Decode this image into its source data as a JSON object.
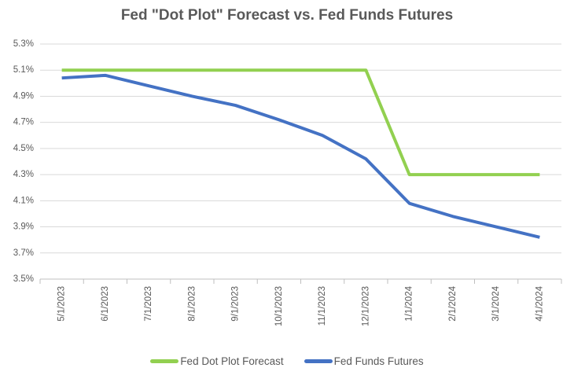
{
  "chart_data": {
    "type": "line",
    "title": "Fed \"Dot Plot\" Forecast vs. Fed Funds Futures",
    "x": [
      "5/1/2023",
      "6/1/2023",
      "7/1/2023",
      "8/1/2023",
      "9/1/2023",
      "10/1/2023",
      "11/1/2023",
      "12/1/2023",
      "1/1/2024",
      "2/1/2024",
      "3/1/2024",
      "4/1/2024"
    ],
    "series": [
      {
        "name": "Fed Dot Plot Forecast",
        "color": "#92D050",
        "values": [
          5.1,
          5.1,
          5.1,
          5.1,
          5.1,
          5.1,
          5.1,
          5.1,
          4.3,
          4.3,
          4.3,
          4.3
        ]
      },
      {
        "name": "Fed Funds Futures",
        "color": "#4472C4",
        "values": [
          5.04,
          5.06,
          4.98,
          4.9,
          4.83,
          4.72,
          4.6,
          4.42,
          4.08,
          3.98,
          3.9,
          3.82
        ]
      }
    ],
    "ylim": [
      3.5,
      5.3
    ],
    "ytick_step": 0.2,
    "ytick_labels": [
      "5.3%",
      "5.1%",
      "4.9%",
      "4.7%",
      "4.5%",
      "4.3%",
      "4.1%",
      "3.9%",
      "3.7%",
      "3.5%"
    ],
    "grid": true,
    "legend_position": "bottom",
    "colors": {
      "gridline": "#D9D9D9",
      "axis_line": "#BFBFBF",
      "tick_label": "#595959",
      "title": "#595959",
      "background": "#FFFFFF"
    }
  }
}
